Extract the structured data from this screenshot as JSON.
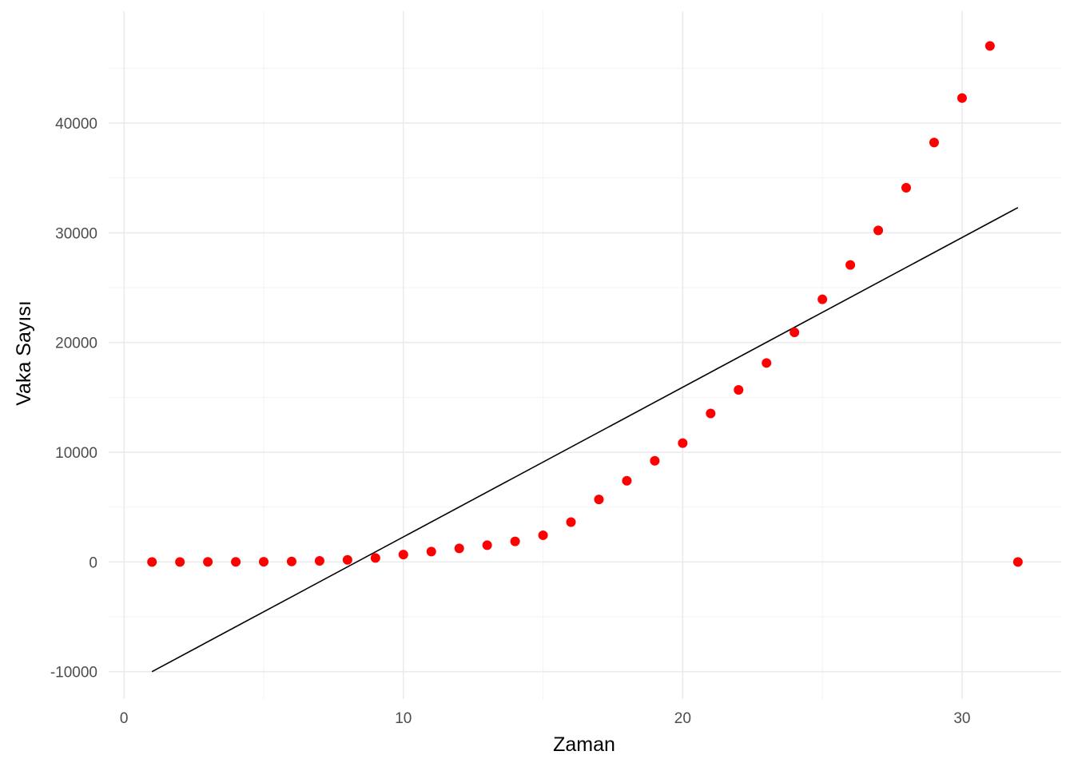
{
  "chart_data": {
    "type": "scatter",
    "xlabel": "Zaman",
    "ylabel": "Vaka Sayısı",
    "xlim": [
      -0.55,
      33.55
    ],
    "ylim": [
      -12500,
      50200
    ],
    "x_ticks": [
      0,
      10,
      20,
      30
    ],
    "x_tick_labels": [
      "0",
      "10",
      "20",
      "30"
    ],
    "y_ticks": [
      -10000,
      0,
      10000,
      20000,
      30000,
      40000
    ],
    "y_tick_labels": [
      "-10000",
      "0",
      "10000",
      "20000",
      "30000",
      "40000"
    ],
    "grid": true,
    "series": [
      {
        "kind": "points",
        "color": "#ff0000",
        "x": [
          1,
          2,
          3,
          4,
          5,
          6,
          7,
          8,
          9,
          10,
          11,
          12,
          13,
          14,
          15,
          16,
          17,
          18,
          19,
          20,
          21,
          22,
          23,
          24,
          25,
          26,
          27,
          28,
          29,
          30,
          31,
          32
        ],
        "y": [
          1,
          1,
          5,
          6,
          18,
          47,
          98,
          191,
          359,
          670,
          947,
          1236,
          1529,
          1872,
          2433,
          3629,
          5698,
          7402,
          9217,
          10827,
          13531,
          15679,
          18135,
          20921,
          23934,
          27069,
          30217,
          34109,
          38226,
          42282,
          47029,
          0
        ]
      },
      {
        "kind": "fit-line",
        "color": "#000000",
        "x": [
          1,
          32
        ],
        "y": [
          -10000,
          32300
        ]
      }
    ]
  }
}
